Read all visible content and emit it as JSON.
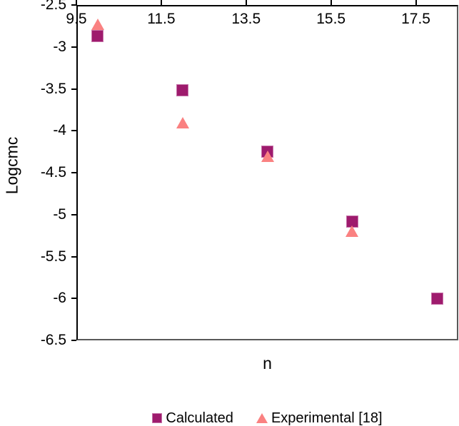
{
  "chart_data": {
    "type": "scatter",
    "title": "",
    "xlabel": "n",
    "ylabel": "Logcmc",
    "xlim": [
      9.5,
      18.5
    ],
    "ylim": [
      -6.5,
      -2.5
    ],
    "x_ticks": [
      9.5,
      11.5,
      13.5,
      15.5,
      17.5
    ],
    "x_tick_labels": [
      "9.5",
      "11.5",
      "13.5",
      "15.5",
      "17.5"
    ],
    "y_ticks": [
      -2.5,
      -3,
      -3.5,
      -4,
      -4.5,
      -5,
      -5.5,
      -6,
      -6.5
    ],
    "y_tick_labels": [
      "-2.5",
      "-3",
      "-3.5",
      "-4",
      "-4.5",
      "-5",
      "-5.5",
      "-6",
      "-6.5"
    ],
    "grid": false,
    "legend_position": "bottom-center",
    "x_axis_position": "top",
    "series": [
      {
        "name": "Calculated",
        "marker": "square",
        "color": "#9E1B6D",
        "edge_color": "#C673A9",
        "x": [
          10,
          12,
          14,
          16,
          18
        ],
        "y": [
          -2.87,
          -3.52,
          -4.25,
          -5.08,
          -6.0
        ]
      },
      {
        "name": "Experimental [18]",
        "marker": "triangle",
        "color": "#FA8181",
        "x": [
          10,
          12,
          14,
          16
        ],
        "y": [
          -2.73,
          -3.9,
          -4.3,
          -5.2
        ]
      }
    ],
    "colors": {
      "axis_line": "#000000",
      "plot_border": "#595959",
      "text": "#000000",
      "background": "#ffffff"
    }
  }
}
